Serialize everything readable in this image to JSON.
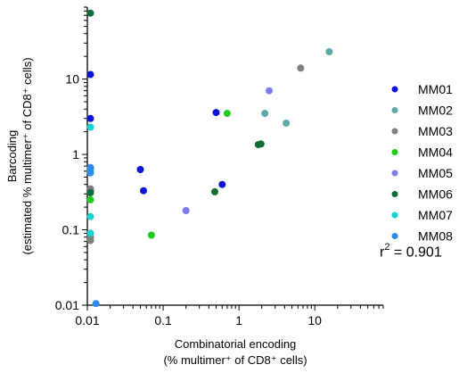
{
  "chart_data": {
    "type": "scatter",
    "xscale": "log",
    "yscale": "log",
    "xlim": [
      0.01,
      80
    ],
    "ylim": [
      0.01,
      90
    ],
    "xticks": [
      "0.01",
      "0.1",
      "1",
      "10"
    ],
    "yticks": [
      "0.01",
      "0.1",
      "1",
      "10"
    ],
    "xlabel_lines": [
      "Combinatorial encoding",
      "(% multimer⁺ of CD8⁺ cells)"
    ],
    "ylabel_lines": [
      "Barcoding",
      "(estimated % multimer⁺ of CD8⁺ cells)"
    ],
    "grid": false,
    "legend_position": "right",
    "annotation": {
      "prefix": "r",
      "sup": "2",
      "suffix": " = 0.901"
    },
    "series": [
      {
        "name": "MM01",
        "color": "#0a14d9",
        "points": [
          [
            0.011,
            11.5
          ],
          [
            0.011,
            3.0
          ],
          [
            0.011,
            0.65
          ],
          [
            0.011,
            0.33
          ],
          [
            0.05,
            0.63
          ],
          [
            0.055,
            0.33
          ],
          [
            0.5,
            3.6
          ],
          [
            0.6,
            0.4
          ]
        ]
      },
      {
        "name": "MM02",
        "color": "#5fa8a8",
        "points": [
          [
            2.2,
            3.5
          ],
          [
            4.2,
            2.6
          ],
          [
            15.5,
            23.0
          ]
        ]
      },
      {
        "name": "MM03",
        "color": "#7f7f7f",
        "points": [
          [
            0.011,
            0.35
          ],
          [
            0.011,
            0.08
          ],
          [
            0.011,
            0.072
          ],
          [
            6.5,
            14.0
          ]
        ]
      },
      {
        "name": "MM04",
        "color": "#1ecb1e",
        "points": [
          [
            0.011,
            0.25
          ],
          [
            0.07,
            0.085
          ],
          [
            0.7,
            3.5
          ]
        ]
      },
      {
        "name": "MM05",
        "color": "#7b7bec",
        "points": [
          [
            0.2,
            0.18
          ],
          [
            2.5,
            7.0
          ]
        ]
      },
      {
        "name": "MM06",
        "color": "#0f6e38",
        "points": [
          [
            0.011,
            75.0
          ],
          [
            0.011,
            0.31
          ],
          [
            0.48,
            0.32
          ],
          [
            1.8,
            1.35
          ],
          [
            1.95,
            1.38
          ]
        ]
      },
      {
        "name": "MM07",
        "color": "#12d2d2",
        "points": [
          [
            0.011,
            2.3
          ],
          [
            0.011,
            0.6
          ],
          [
            0.011,
            0.15
          ],
          [
            0.011,
            0.09
          ]
        ]
      },
      {
        "name": "MM08",
        "color": "#2e8ae6",
        "points": [
          [
            0.011,
            0.67
          ],
          [
            0.011,
            0.57
          ],
          [
            0.013,
            0.0105
          ]
        ]
      }
    ]
  }
}
